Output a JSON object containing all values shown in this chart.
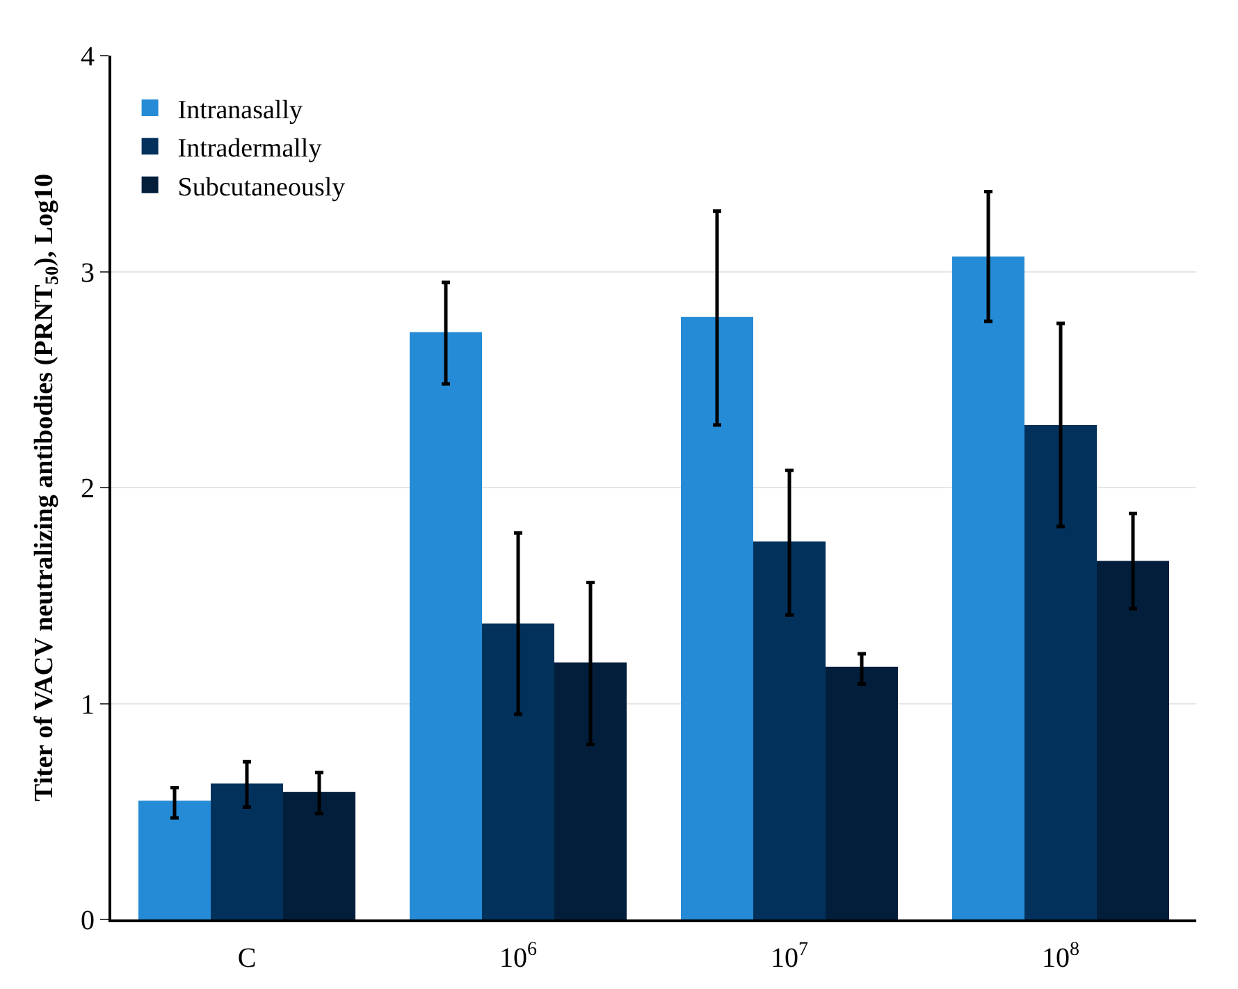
{
  "chart_data": {
    "type": "bar",
    "ylabel": "Titer of VACV neutralizing antibodies (PRNT$_{50}$), Log10",
    "categories": [
      "C",
      "10$^{6}$",
      "10$^{7}$",
      "10$^{8}$"
    ],
    "series": [
      {
        "name": "Intranasally",
        "color": "#258bd6",
        "values": [
          0.55,
          2.72,
          2.79,
          3.07
        ],
        "errors": [
          [
            0.47,
            0.61
          ],
          [
            2.48,
            2.95
          ],
          [
            2.29,
            3.28
          ],
          [
            2.77,
            3.37
          ]
        ]
      },
      {
        "name": "Intradermally",
        "color": "#02325c",
        "values": [
          0.63,
          1.37,
          1.75,
          2.29
        ],
        "errors": [
          [
            0.52,
            0.73
          ],
          [
            0.95,
            1.79
          ],
          [
            1.41,
            2.08
          ],
          [
            1.82,
            2.76
          ]
        ]
      },
      {
        "name": "Subcutaneously",
        "color": "#021e3b",
        "values": [
          0.59,
          1.19,
          1.17,
          1.66
        ],
        "errors": [
          [
            0.49,
            0.68
          ],
          [
            0.81,
            1.56
          ],
          [
            1.09,
            1.23
          ],
          [
            1.44,
            1.88
          ]
        ]
      }
    ],
    "ylim": [
      0,
      4
    ],
    "yticks": [
      0,
      1,
      2,
      3,
      4
    ],
    "grid": "y",
    "legend": "top left"
  }
}
